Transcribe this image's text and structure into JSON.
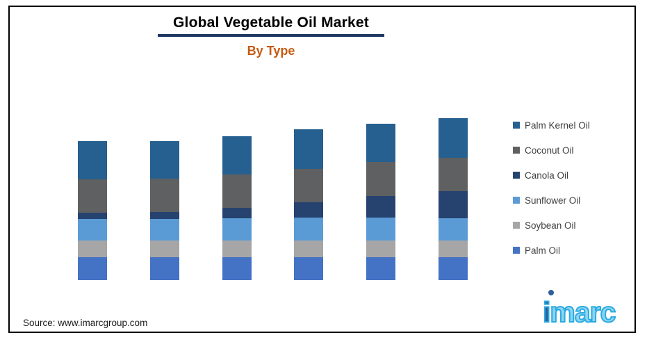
{
  "header": {
    "title": "Global Vegetable Oil Market",
    "subtitle": "By Type",
    "underline_color": "#1F3864",
    "subtitle_color": "#C55A11"
  },
  "chart_data": {
    "type": "bar",
    "stacked": true,
    "title": "Global Vegetable Oil Market",
    "subtitle": "By Type",
    "categories": [
      "",
      "",
      "",
      "",
      "",
      ""
    ],
    "note": "no axis lines, tick labels or data labels shown; values are relative estimates from bar pixel heights",
    "series": [
      {
        "name": "Palm Oil",
        "color": "#4472C4",
        "values": [
          33,
          33,
          33,
          33,
          33,
          33
        ]
      },
      {
        "name": "Soybean Oil",
        "color": "#A6A6A6",
        "values": [
          24,
          24,
          24,
          24,
          24,
          24
        ]
      },
      {
        "name": "Sunflower Oil",
        "color": "#5B9BD5",
        "values": [
          31,
          31,
          32,
          33,
          33,
          32
        ]
      },
      {
        "name": "Canola Oil",
        "color": "#26426F",
        "values": [
          9,
          10,
          15,
          22,
          31,
          39
        ]
      },
      {
        "name": "Coconut Oil",
        "color": "#5F6062",
        "values": [
          48,
          48,
          48,
          48,
          49,
          48
        ]
      },
      {
        "name": "Palm Kernel Oil",
        "color": "#266090",
        "values": [
          55,
          54,
          55,
          57,
          55,
          57
        ]
      }
    ],
    "legend_position": "right",
    "axes_visible": false,
    "gridlines": false
  },
  "legend": {
    "items": [
      {
        "label": "Palm Kernel Oil",
        "color": "#266090"
      },
      {
        "label": "Coconut Oil",
        "color": "#5F6062"
      },
      {
        "label": "Canola Oil",
        "color": "#26426F"
      },
      {
        "label": "Sunflower Oil",
        "color": "#5B9BD5"
      },
      {
        "label": "Soybean Oil",
        "color": "#A6A6A6"
      },
      {
        "label": "Palm Oil",
        "color": "#4472C4"
      }
    ]
  },
  "source": {
    "text": "Source: www.imarcgroup.com"
  },
  "logo": {
    "text": "imarc",
    "primary_color": "#29ABE2",
    "accent_color": "#2E5E9E"
  }
}
